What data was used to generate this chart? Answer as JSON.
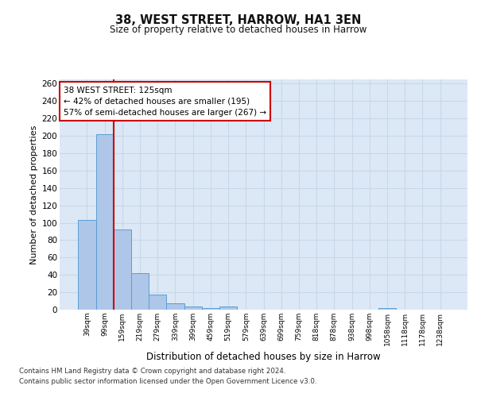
{
  "title_line1": "38, WEST STREET, HARROW, HA1 3EN",
  "title_line2": "Size of property relative to detached houses in Harrow",
  "xlabel": "Distribution of detached houses by size in Harrow",
  "ylabel": "Number of detached properties",
  "categories": [
    "39sqm",
    "99sqm",
    "159sqm",
    "219sqm",
    "279sqm",
    "339sqm",
    "399sqm",
    "459sqm",
    "519sqm",
    "579sqm",
    "639sqm",
    "699sqm",
    "759sqm",
    "818sqm",
    "878sqm",
    "938sqm",
    "998sqm",
    "1058sqm",
    "1118sqm",
    "1178sqm",
    "1238sqm"
  ],
  "bar_values": [
    103,
    202,
    92,
    42,
    17,
    7,
    4,
    2,
    4,
    0,
    0,
    0,
    0,
    0,
    0,
    0,
    0,
    2,
    0,
    0,
    0
  ],
  "bar_color": "#aec6e8",
  "bar_edge_color": "#5a9fd4",
  "vline_x_index": 1.5,
  "vline_color": "#cc0000",
  "annotation_line1": "38 WEST STREET: 125sqm",
  "annotation_line2": "← 42% of detached houses are smaller (195)",
  "annotation_line3": "57% of semi-detached houses are larger (267) →",
  "annotation_box_color": "#ffffff",
  "annotation_box_edge": "#cc0000",
  "ylim": [
    0,
    265
  ],
  "yticks": [
    0,
    20,
    40,
    60,
    80,
    100,
    120,
    140,
    160,
    180,
    200,
    220,
    240,
    260
  ],
  "grid_color": "#c8d8e8",
  "background_color": "#dce8f5",
  "footer_line1": "Contains HM Land Registry data © Crown copyright and database right 2024.",
  "footer_line2": "Contains public sector information licensed under the Open Government Licence v3.0."
}
